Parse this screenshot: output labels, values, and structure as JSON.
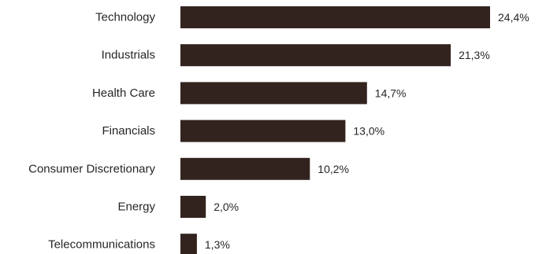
{
  "chart_data": {
    "type": "bar",
    "orientation": "horizontal",
    "categories": [
      "Technology",
      "Industrials",
      "Health Care",
      "Financials",
      "Consumer Discretionary",
      "Energy",
      "Telecommunications"
    ],
    "values": [
      24.4,
      21.3,
      14.7,
      13.0,
      10.2,
      2.0,
      1.3
    ],
    "value_labels": [
      "24,4%",
      "21,3%",
      "14,7%",
      "13,0%",
      "10,2%",
      "2,0%",
      "1,3%"
    ],
    "bar_color": "#33231f",
    "grid": false,
    "legend": "none",
    "xlim": [
      0,
      24.4
    ]
  }
}
